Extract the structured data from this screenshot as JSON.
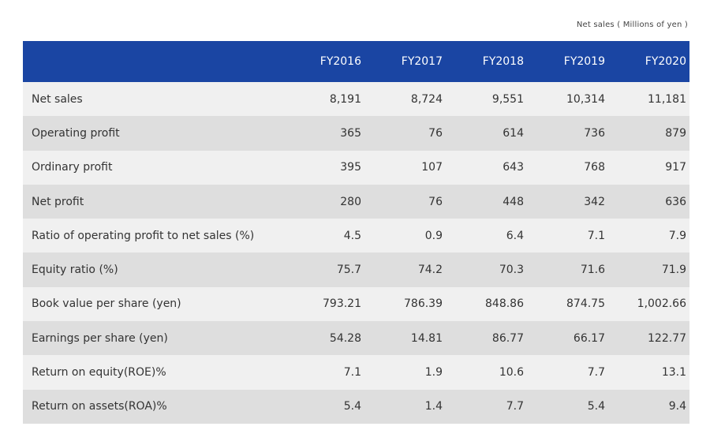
{
  "unit_note": "Net sales ( Millions of yen )",
  "header": {
    "label": "",
    "years": [
      "FY2016",
      "FY2017",
      "FY2018",
      "FY2019",
      "FY2020"
    ]
  },
  "rows": [
    {
      "label": "Net sales",
      "values": [
        "8,191",
        "8,724",
        "9,551",
        "10,314",
        "11,181"
      ]
    },
    {
      "label": "Operating profit",
      "values": [
        "365",
        "76",
        "614",
        "736",
        "879"
      ]
    },
    {
      "label": "Ordinary profit",
      "values": [
        "395",
        "107",
        "643",
        "768",
        "917"
      ]
    },
    {
      "label": "Net profit",
      "values": [
        "280",
        "76",
        "448",
        "342",
        "636"
      ]
    },
    {
      "label": "Ratio of operating profit to net sales (%)",
      "values": [
        "4.5",
        "0.9",
        "6.4",
        "7.1",
        "7.9"
      ]
    },
    {
      "label": "Equity ratio (%)",
      "values": [
        "75.7",
        "74.2",
        "70.3",
        "71.6",
        "71.9"
      ]
    },
    {
      "label": "Book value per share (yen)",
      "values": [
        "793.21",
        "786.39",
        "848.86",
        "874.75",
        "1,002.66"
      ]
    },
    {
      "label": "Earnings per share (yen)",
      "values": [
        "54.28",
        "14.81",
        "86.77",
        "66.17",
        "122.77"
      ]
    },
    {
      "label": "Return on equity(ROE)%",
      "values": [
        "7.1",
        "1.9",
        "10.6",
        "7.7",
        "13.1"
      ]
    },
    {
      "label": "Return on assets(ROA)%",
      "values": [
        "5.4",
        "1.4",
        "7.7",
        "5.4",
        "9.4"
      ]
    }
  ],
  "colors": {
    "header_bg": "#1a45a3",
    "row_light": "#f0f0f0",
    "row_dark": "#dedede"
  }
}
